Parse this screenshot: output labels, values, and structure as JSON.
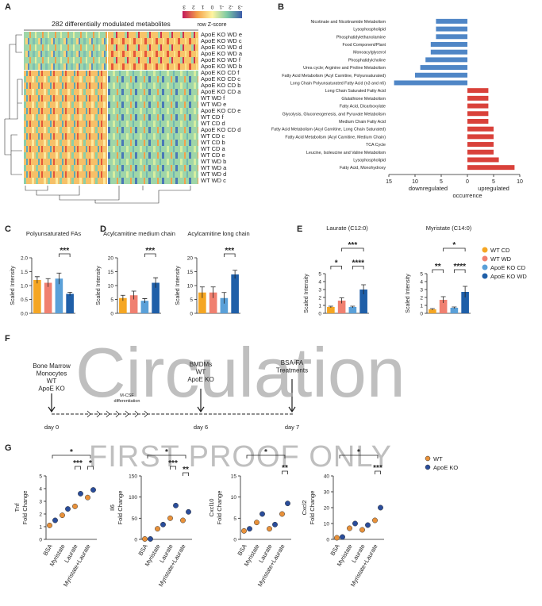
{
  "panel_labels": [
    "A",
    "B",
    "C",
    "D",
    "E",
    "F",
    "G"
  ],
  "watermark": [
    "Circulation",
    "FIRST PROOF ONLY"
  ],
  "bar_legend": [
    {
      "name": "WT CD",
      "color": "#f5a623"
    },
    {
      "name": "WT WD",
      "color": "#f08070"
    },
    {
      "name": "ApoE KO CD",
      "color": "#5aa0d8"
    },
    {
      "name": "ApoE KO WD",
      "color": "#1f5fa8"
    }
  ],
  "diagram": {
    "start": [
      "Bone Marrow",
      "Monocytes",
      "WT",
      "ApoE KO"
    ],
    "step": [
      "M-CSF",
      "differentiation"
    ],
    "middle": [
      "BMDMs",
      "WT",
      "ApoE KO"
    ],
    "end": [
      "BSA-FA",
      "Treatments"
    ],
    "days": [
      "day 0",
      "day 6",
      "day 7"
    ]
  },
  "chart_data": [
    {
      "type": "heatmap",
      "title": "282 differentially modulated metabolites",
      "colorbar_label": "row Z-score",
      "colorbar_ticks": [
        3,
        2,
        1,
        0,
        -1,
        -2,
        -3
      ],
      "rows": [
        "ApoE KO WD e",
        "ApoE KO WD c",
        "ApoE KO WD d",
        "ApoE KO WD a",
        "ApoE KO WD f",
        "ApoE KO WD b",
        "ApoE KO CD f",
        "ApoE KO CD c",
        "ApoE KO CD b",
        "ApoE KO CD a",
        "WT WD f",
        "WT WD e",
        "ApoE KO CD e",
        "WT CD f",
        "WT CD d",
        "ApoE KO CD d",
        "WT CD c",
        "WT CD b",
        "WT CD a",
        "WT CD e",
        "WT WD b",
        "WT WD a",
        "WT WD d",
        "WT WD c"
      ]
    },
    {
      "type": "hbar",
      "categories": [
        "Nicotinate and Nicotinamide Metabolism",
        "Lysophospholipid",
        "Phosphatidylethanolamine",
        "Food Component/Plant",
        "Monoacylglycerol",
        "Phosphatidylcholine",
        "Urea cycle; Arginine and Proline Metabolism",
        "Fatty Acid Metabolism (Acyl Carnitine, Polyunsaturated)",
        "Long Chain Polyunsaturated Fatty Acid (n3 and n6)",
        "Long Chain Saturated Fatty Acid",
        "Glutathione Metabolism",
        "Fatty Acid, Dicarboxylate",
        "Glycolysis, Gluconeogenesis, and Pyruvate Metabolism",
        "Medium Chain Fatty Acid",
        "Fatty Acid Metabolism (Acyl Carnitine, Long Chain Saturated)",
        "Fatty Acid Metabolism (Acyl Carnitine, Medium Chain)",
        "TCA Cycle",
        "Leucine, Isoleucine and Valine Metabolism",
        "Lysophospholipid",
        "Fatty Acid, Monohydroxy"
      ],
      "values": [
        -6,
        -6,
        -6,
        -7,
        -7,
        -8,
        -9,
        -10,
        -14,
        4,
        4,
        4,
        4,
        4,
        5,
        5,
        5,
        5,
        6,
        9
      ],
      "colors": {
        "negative": "#4f86c6",
        "positive": "#d9413a"
      },
      "xlim": [
        -15,
        10
      ],
      "xticks": [
        {
          "value": -15,
          "label": "15"
        },
        {
          "value": -10,
          "label": "10"
        },
        {
          "value": -5,
          "label": "5"
        },
        0,
        5,
        10
      ],
      "x_labels": [
        "downregulated",
        "upregulated"
      ],
      "xlabel": "occurrence"
    },
    {
      "type": "bar",
      "title": "Polyunsaturated FAs",
      "ylabel": "Scaled Intensity",
      "categories": [
        null,
        null,
        null,
        null
      ],
      "values": [
        1.2,
        1.1,
        1.25,
        0.7
      ],
      "errors": [
        0.12,
        0.15,
        0.2,
        0.06
      ],
      "ylim": [
        0,
        2
      ],
      "yticks": [
        {
          "value": 0,
          "label": "0.0"
        },
        {
          "value": 0.5,
          "label": "0.5"
        },
        {
          "value": 1,
          "label": "1.0"
        },
        {
          "value": 1.5,
          "label": "1.5"
        },
        {
          "value": 2,
          "label": "2.0"
        }
      ],
      "annotations": [
        "***"
      ]
    },
    {
      "type": "bar",
      "title": "Acylcamitine medium chain",
      "ylabel": "Scaled Intensity",
      "categories": [
        null,
        null,
        null,
        null
      ],
      "values": [
        5.5,
        6.5,
        4.5,
        11
      ],
      "errors": [
        1,
        1.5,
        0.8,
        1.8
      ],
      "ylim": [
        0,
        20
      ],
      "yticks": [
        0,
        5,
        10,
        15,
        20
      ],
      "annotations": [
        "***"
      ]
    },
    {
      "type": "bar",
      "title": "Acylcamitine long chain",
      "ylabel": "Scaled Intensity",
      "categories": [
        null,
        null,
        null,
        null
      ],
      "values": [
        7.5,
        7.5,
        5.5,
        14
      ],
      "errors": [
        2,
        2,
        2,
        1.5
      ],
      "ylim": [
        0,
        20
      ],
      "yticks": [
        0,
        5,
        10,
        15,
        20
      ],
      "annotations": [
        "***"
      ]
    },
    {
      "type": "bar",
      "title": "Laurate (C12:0)",
      "ylabel": "Scaled Intensity",
      "categories": [
        null,
        null,
        null,
        null
      ],
      "values": [
        0.8,
        1.6,
        0.8,
        3
      ],
      "errors": [
        0.1,
        0.35,
        0.1,
        0.6
      ],
      "ylim": [
        0,
        5
      ],
      "yticks": [
        0,
        1,
        2,
        3,
        4,
        5
      ],
      "annotations": [
        "*",
        "****",
        "***"
      ]
    },
    {
      "type": "bar",
      "title": "Myristate (C14:0)",
      "ylabel": "Scaled Intensity",
      "categories": [
        null,
        null,
        null,
        null
      ],
      "values": [
        0.5,
        1.7,
        0.7,
        2.7
      ],
      "errors": [
        0.1,
        0.4,
        0.1,
        0.7
      ],
      "ylim": [
        0,
        5
      ],
      "yticks": [
        0,
        1,
        2,
        3,
        4,
        5
      ],
      "annotations": [
        "**",
        "****",
        "*"
      ]
    },
    {
      "type": "dot",
      "ylabel": [
        "Tnf",
        "Fold Change"
      ],
      "categories": [
        "BSA",
        "Myristate",
        "Laurate",
        "Myristate+Laurate"
      ],
      "series": [
        {
          "name": "WT",
          "color": "#e8913a",
          "values": [
            1.1,
            1.9,
            2.6,
            3.3
          ]
        },
        {
          "name": "ApoE KO",
          "color": "#2a4d9b",
          "values": [
            1.5,
            2.4,
            3.6,
            3.9
          ]
        }
      ],
      "ylim": [
        0,
        5
      ],
      "yticks": [
        0,
        1,
        2,
        3,
        4,
        5
      ],
      "annotations": [
        "*",
        "***",
        "*"
      ]
    },
    {
      "type": "dot",
      "ylabel": [
        "Il6",
        "Fold Change"
      ],
      "categories": [
        "BSA",
        "Myristate",
        "Laurate",
        "Myristate+Laurate"
      ],
      "series": [
        {
          "name": "WT",
          "color": "#e8913a",
          "values": [
            1,
            25,
            50,
            45
          ]
        },
        {
          "name": "ApoE KO",
          "color": "#2a4d9b",
          "values": [
            1,
            35,
            80,
            65
          ]
        }
      ],
      "ylim": [
        0,
        150
      ],
      "yticks": [
        0,
        50,
        100,
        150
      ],
      "annotations": [
        "*",
        "***",
        "**"
      ]
    },
    {
      "type": "dot",
      "ylabel": [
        "Cxcl10",
        "Fold Change"
      ],
      "categories": [
        "BSA",
        "Myristate",
        "Laurate",
        "Myristate+Laurate"
      ],
      "series": [
        {
          "name": "WT",
          "color": "#e8913a",
          "values": [
            2,
            4,
            2.5,
            6
          ]
        },
        {
          "name": "ApoE KO",
          "color": "#2a4d9b",
          "values": [
            2.5,
            6,
            3.5,
            8.5
          ]
        }
      ],
      "ylim": [
        0,
        15
      ],
      "yticks": [
        0,
        5,
        10,
        15
      ],
      "annotations": [
        "*",
        "**"
      ]
    },
    {
      "type": "dot",
      "ylabel": [
        "Cxcl2",
        "Fold Change"
      ],
      "categories": [
        "BSA",
        "Myristate",
        "Laurate",
        "Myristate+Laurate"
      ],
      "series": [
        {
          "name": "WT",
          "color": "#e8913a",
          "values": [
            1,
            7,
            6,
            12
          ]
        },
        {
          "name": "ApoE KO",
          "color": "#2a4d9b",
          "values": [
            1.5,
            10,
            9,
            20
          ]
        }
      ],
      "ylim": [
        0,
        40
      ],
      "yticks": [
        0,
        10,
        20,
        30,
        40
      ],
      "annotations": [
        "*",
        "***"
      ]
    }
  ]
}
